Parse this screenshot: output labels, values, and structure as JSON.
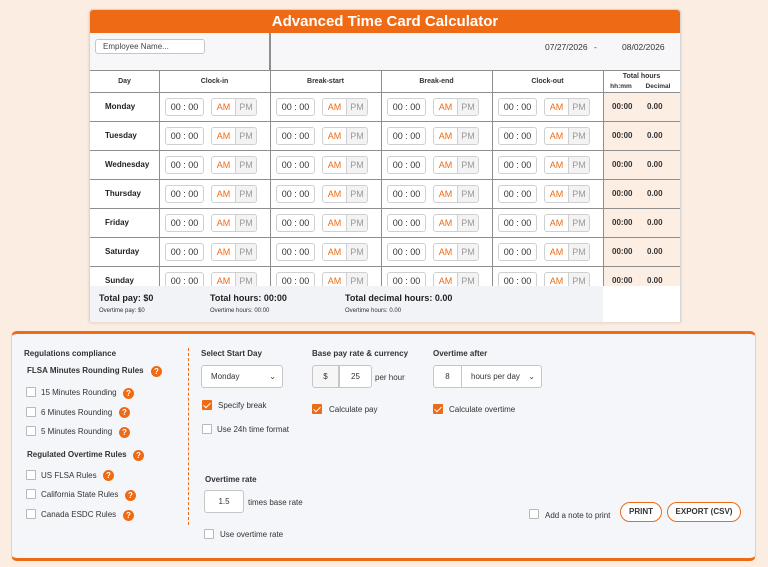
{
  "title": "Advanced Time Card Calculator",
  "employee": {
    "placeholder": "Employee Name..."
  },
  "dates": {
    "start": "07/27/2026",
    "separator": "-",
    "end": "08/02/2026"
  },
  "columns": {
    "day": "Day",
    "clock_in": "Clock-in",
    "break_start": "Break-start",
    "break_end": "Break-end",
    "clock_out": "Clock-out",
    "total_hours": "Total hours",
    "hhmm": "hh:mm",
    "decimal": "Decimal"
  },
  "time_placeholder": "00 : 00",
  "am_label": "AM",
  "pm_label": "PM",
  "days": [
    {
      "name": "Monday",
      "total_hm": "00:00",
      "total_dec": "0.00"
    },
    {
      "name": "Tuesday",
      "total_hm": "00:00",
      "total_dec": "0.00"
    },
    {
      "name": "Wednesday",
      "total_hm": "00:00",
      "total_dec": "0.00"
    },
    {
      "name": "Thursday",
      "total_hm": "00:00",
      "total_dec": "0.00"
    },
    {
      "name": "Friday",
      "total_hm": "00:00",
      "total_dec": "0.00"
    },
    {
      "name": "Saturday",
      "total_hm": "00:00",
      "total_dec": "0.00"
    },
    {
      "name": "Sunday",
      "total_hm": "00:00",
      "total_dec": "0.00"
    }
  ],
  "summary": {
    "total_pay": "Total pay: $0",
    "overtime_pay": "Overtime pay: $0",
    "total_hours": "Total hours: 00:00",
    "overtime_hours": "Overtime hours: 00:00",
    "total_decimal_hours": "Total decimal hours: 0.00",
    "overtime_hours_decimal": "Overtime hours: 0.00"
  },
  "settings": {
    "regulations_title": "Regulations compliance",
    "flsa_rounding_title": "FLSA Minutes Rounding Rules",
    "rounding_options": [
      "15 Minutes Rounding",
      "6 Minutes Rounding",
      "5 Minutes Rounding"
    ],
    "overtime_rules_title": "Regulated Overtime Rules",
    "overtime_rule_options": [
      "US FLSA Rules",
      "California State Rules",
      "Canada ESDC Rules"
    ],
    "help_symbol": "?",
    "start_day": {
      "label": "Select Start Day",
      "value": "Monday"
    },
    "specify_break": {
      "label": "Specify break",
      "checked": true
    },
    "use_24h": {
      "label": "Use 24h time format",
      "checked": false
    },
    "base_pay": {
      "label": "Base pay rate & currency",
      "currency": "$",
      "value": "25",
      "unit": "per hour"
    },
    "calculate_pay": {
      "label": "Calculate pay",
      "checked": true
    },
    "overtime_after": {
      "label": "Overtime after",
      "value": "8",
      "unit": "hours per day"
    },
    "calculate_overtime": {
      "label": "Calculate overtime",
      "checked": true
    },
    "overtime_rate": {
      "label": "Overtime rate",
      "value": "1.5",
      "unit": "times base rate"
    },
    "use_overtime_rate": {
      "label": "Use overtime rate",
      "checked": false
    },
    "add_note": {
      "label": "Add a note to print",
      "checked": false
    },
    "print_label": "PRINT",
    "export_label": "EXPORT (CSV)"
  },
  "colors": {
    "accent": "#ee6a15",
    "background": "#fcede2",
    "total_column": "#fdeee4"
  }
}
